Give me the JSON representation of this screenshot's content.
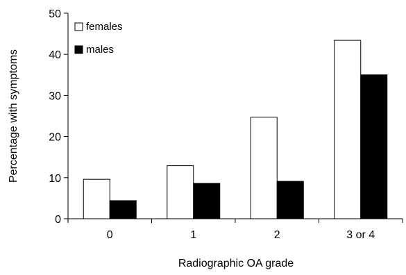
{
  "chart_data": {
    "type": "bar",
    "title": "",
    "xlabel": "Radiographic OA grade",
    "ylabel": "Percentage with symptoms",
    "categories": [
      "0",
      "1",
      "2",
      "3 or 4"
    ],
    "series": [
      {
        "name": "females",
        "values": [
          9.6,
          12.9,
          24.7,
          43.4
        ],
        "color": "#ffffff"
      },
      {
        "name": "males",
        "values": [
          4.4,
          8.6,
          9.1,
          35.0
        ],
        "color": "#000000"
      }
    ],
    "ylim": [
      0,
      50
    ],
    "yticks": [
      0,
      10,
      20,
      30,
      40,
      50
    ],
    "grid": false,
    "legend_position": "top-left"
  }
}
